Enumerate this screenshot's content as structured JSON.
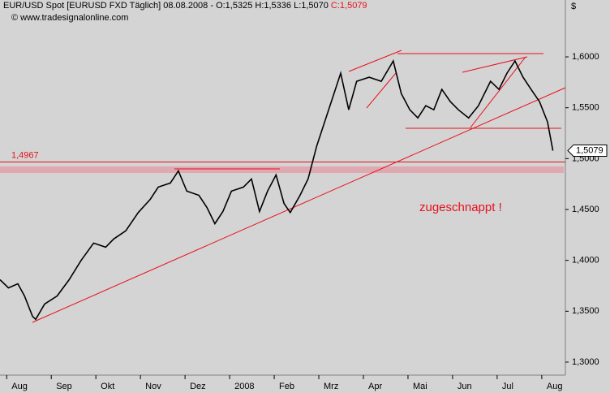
{
  "chart_data": {
    "type": "line",
    "title": "EUR/USD Spot [EURUSD FXD  Täglich] 08.08.2008 - O:1,5325 H:1,5336 L:1,5070",
    "title_close": "C:1,5079",
    "subtitle": "© www.tradesignalonline.com",
    "axis_unit": "$",
    "annotation": "zugeschnappt !",
    "color": "#000000",
    "x": [
      -0.15,
      0.04,
      0.25,
      0.4,
      0.58,
      0.65,
      0.85,
      1.13,
      1.4,
      1.67,
      1.95,
      2.22,
      2.4,
      2.67,
      2.95,
      3.22,
      3.4,
      3.67,
      3.85,
      4.04,
      4.31,
      4.49,
      4.67,
      4.85,
      5.04,
      5.31,
      5.49,
      5.67,
      5.85,
      6.04,
      6.22,
      6.36,
      6.58,
      6.76,
      6.95,
      7.13,
      7.31,
      7.49,
      7.67,
      7.85,
      8.13,
      8.4,
      8.67,
      8.85,
      9.04,
      9.22,
      9.4,
      9.58,
      9.76,
      9.95,
      10.13,
      10.36,
      10.58,
      10.85,
      11.04,
      11.22,
      11.4,
      11.58,
      11.76,
      11.95,
      12.13,
      12.25
    ],
    "values": [
      1.381,
      1.373,
      1.377,
      1.365,
      1.345,
      1.342,
      1.357,
      1.365,
      1.381,
      1.4,
      1.417,
      1.413,
      1.421,
      1.429,
      1.447,
      1.46,
      1.472,
      1.476,
      1.488,
      1.468,
      1.464,
      1.452,
      1.436,
      1.448,
      1.468,
      1.472,
      1.48,
      1.448,
      1.468,
      1.484,
      1.456,
      1.447,
      1.464,
      1.48,
      1.512,
      1.536,
      1.56,
      1.584,
      1.548,
      1.576,
      1.58,
      1.576,
      1.596,
      1.564,
      1.548,
      1.54,
      1.552,
      1.548,
      1.568,
      1.556,
      1.548,
      1.54,
      1.552,
      1.576,
      1.568,
      1.584,
      1.596,
      1.58,
      1.568,
      1.556,
      1.536,
      1.5079
    ],
    "xlim": [
      -0.15,
      12.53
    ],
    "xticks": [
      {
        "value": 0,
        "label": "Aug"
      },
      {
        "value": 1,
        "label": "Sep"
      },
      {
        "value": 2,
        "label": "Okt"
      },
      {
        "value": 3,
        "label": "Nov"
      },
      {
        "value": 4,
        "label": "Dez"
      },
      {
        "value": 5,
        "label": "2008"
      },
      {
        "value": 6,
        "label": "Feb"
      },
      {
        "value": 7,
        "label": "Mrz"
      },
      {
        "value": 8,
        "label": "Apr"
      },
      {
        "value": 9,
        "label": "Mai"
      },
      {
        "value": 10,
        "label": "Jun"
      },
      {
        "value": 11,
        "label": "Jul"
      },
      {
        "value": 12,
        "label": "Aug"
      }
    ],
    "ylim": [
      1.2872,
      1.6559
    ],
    "yticks": [
      {
        "value": 1.3,
        "label": "1,3000"
      },
      {
        "value": 1.35,
        "label": "1,3500"
      },
      {
        "value": 1.4,
        "label": "1,4000"
      },
      {
        "value": 1.45,
        "label": "1,4500"
      },
      {
        "value": 1.5,
        "label": "1,5000"
      },
      {
        "value": 1.55,
        "label": "1,5500"
      },
      {
        "value": 1.6,
        "label": "1,6000"
      }
    ],
    "hline": {
      "value": 1.4967,
      "label": "1,4967"
    },
    "last_price": {
      "value": 1.5079,
      "label": "1,5079"
    }
  }
}
